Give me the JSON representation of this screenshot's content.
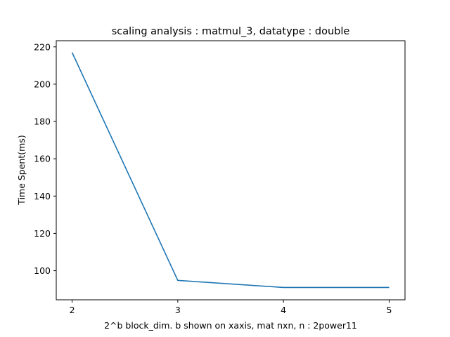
{
  "chart_data": {
    "type": "line",
    "title": "scaling analysis : matmul_3, datatype : double",
    "xlabel": "2^b block_dim. b shown on xaxis, mat nxn, n : 2power11",
    "ylabel": "Time Spent(ms)",
    "x": [
      2,
      3,
      4,
      5
    ],
    "series": [
      {
        "values": [
          217.0,
          94.8,
          91.0,
          91.0
        ],
        "color": "#1f77b4"
      }
    ],
    "xlim": [
      1.85,
      5.15
    ],
    "ylim": [
      84.4,
      223.3
    ],
    "xticks": [
      2,
      3,
      4,
      5
    ],
    "yticks": [
      100,
      120,
      140,
      160,
      180,
      200,
      220
    ],
    "grid": false,
    "legend": "none"
  }
}
